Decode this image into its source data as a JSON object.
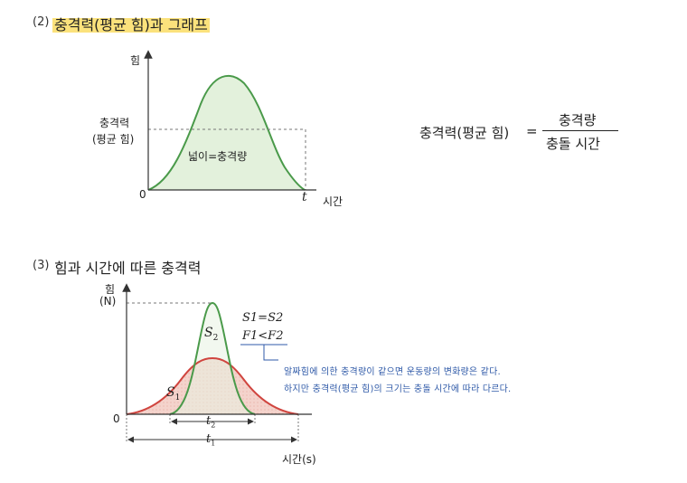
{
  "section2": {
    "number": "(2)",
    "title": "충격력(평균 힘)과 그래프",
    "graph": {
      "y_axis_label": "힘",
      "x_axis_label": "시간",
      "origin_label": "0",
      "t_label": "t",
      "avg_force_label_line1": "충격력",
      "avg_force_label_line2": "(평균 힘)",
      "area_label": "넓이=충격량"
    },
    "formula": {
      "lhs": "충격력(평균 힘)",
      "eq": "=",
      "numerator": "충격량",
      "denominator": "충돌 시간"
    }
  },
  "section3": {
    "number": "(3)",
    "title": "힘과 시간에 따른 충격력",
    "graph": {
      "y_axis_label_line1": "힘",
      "y_axis_label_line2": "(N)",
      "x_axis_label": "시간(s)",
      "origin_label": "0",
      "S1": "S",
      "S1_sub": "1",
      "S2": "S",
      "S2_sub": "2",
      "t1": "t",
      "t1_sub": "1",
      "t2": "t",
      "t2_sub": "2",
      "relation1": "S1=S2",
      "relation2": "F1<F2"
    },
    "note_line1": "알짜힘에 의한 충격량이 같으면 운동량의 변화량은 같다.",
    "note_line2": "하지만 충격력(평균 힘)의 크기는 충돌 시간에 따라 다르다."
  },
  "colors": {
    "green_curve": "#4a9a4a",
    "green_fill": "#e3f1dc",
    "red_curve": "#d0453f",
    "red_fill": "#f6d9d3",
    "highlight": "#fbe27c",
    "note_blue": "#2f5aa8"
  }
}
